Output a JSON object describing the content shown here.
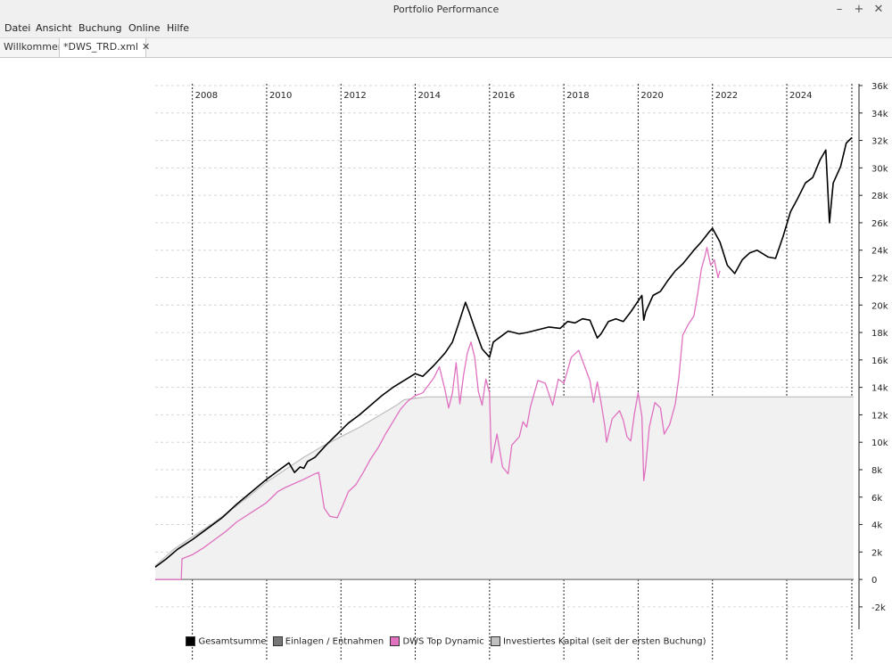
{
  "window": {
    "title": "Portfolio Performance",
    "minimize": "–",
    "maximize": "+",
    "close": "✕"
  },
  "menu": [
    "Datei",
    "Ansicht",
    "Buchung",
    "Online",
    "Hilfe"
  ],
  "tabs": [
    {
      "label": "Willkommen",
      "active": false
    },
    {
      "label": "*DWS_TRD.xml",
      "active": true,
      "close": "✕"
    }
  ],
  "chart_data": {
    "type": "line",
    "x_ticks": [
      "2008",
      "2010",
      "2012",
      "2014",
      "2016",
      "2018",
      "2020",
      "2022",
      "2024"
    ],
    "y_ticks": [
      "36k",
      "34k",
      "32k",
      "30k",
      "28k",
      "26k",
      "24k",
      "22k",
      "20k",
      "18k",
      "16k",
      "14k",
      "12k",
      "10k",
      "8k",
      "6k",
      "4k",
      "2k",
      "0",
      "-2k"
    ],
    "xlim": [
      2007.0,
      2025.8
    ],
    "ylim": [
      -3500,
      36000
    ],
    "grid": true,
    "legend_position": "bottom-center",
    "series": [
      {
        "name": "Investiertes Kapital (seit der ersten Buchung)",
        "color": "#c0c0c0",
        "fill": "#f1f1f1",
        "points": [
          [
            2007.0,
            1000
          ],
          [
            2007.5,
            2200
          ],
          [
            2008.0,
            3100
          ],
          [
            2008.5,
            4000
          ],
          [
            2009.0,
            5000
          ],
          [
            2009.5,
            6000
          ],
          [
            2010.0,
            7100
          ],
          [
            2010.5,
            8000
          ],
          [
            2011.0,
            8900
          ],
          [
            2011.5,
            9700
          ],
          [
            2012.0,
            10400
          ],
          [
            2012.5,
            11100
          ],
          [
            2013.0,
            11900
          ],
          [
            2013.5,
            12700
          ],
          [
            2013.7,
            13100
          ],
          [
            2014.0,
            13200
          ],
          [
            2014.3,
            13300
          ],
          [
            2025.8,
            13300
          ]
        ]
      },
      {
        "name": "Einlagen / Entnahmen",
        "color": "#777777",
        "points": [
          [
            2007.0,
            0
          ],
          [
            2025.8,
            0
          ]
        ]
      },
      {
        "name": "DWS Top Dynamic",
        "color": "#e070c0",
        "points": [
          [
            2007.0,
            0
          ],
          [
            2007.7,
            0
          ],
          [
            2007.72,
            1500
          ],
          [
            2008.0,
            1800
          ],
          [
            2008.3,
            2300
          ],
          [
            2008.6,
            2900
          ],
          [
            2008.9,
            3500
          ],
          [
            2009.2,
            4200
          ],
          [
            2009.6,
            4900
          ],
          [
            2010.0,
            5600
          ],
          [
            2010.3,
            6400
          ],
          [
            2010.5,
            6700
          ],
          [
            2011.0,
            7300
          ],
          [
            2011.3,
            7700
          ],
          [
            2011.4,
            7800
          ],
          [
            2011.55,
            5200
          ],
          [
            2011.7,
            4600
          ],
          [
            2011.9,
            4500
          ],
          [
            2012.05,
            5400
          ],
          [
            2012.2,
            6400
          ],
          [
            2012.4,
            6900
          ],
          [
            2012.6,
            7800
          ],
          [
            2012.8,
            8800
          ],
          [
            2013.0,
            9600
          ],
          [
            2013.2,
            10600
          ],
          [
            2013.4,
            11500
          ],
          [
            2013.6,
            12400
          ],
          [
            2013.8,
            13000
          ],
          [
            2014.0,
            13400
          ],
          [
            2014.2,
            13600
          ],
          [
            2014.5,
            14700
          ],
          [
            2014.65,
            15500
          ],
          [
            2014.8,
            13800
          ],
          [
            2014.9,
            12500
          ],
          [
            2015.0,
            13600
          ],
          [
            2015.1,
            15800
          ],
          [
            2015.2,
            12800
          ],
          [
            2015.3,
            14900
          ],
          [
            2015.4,
            16500
          ],
          [
            2015.5,
            17300
          ],
          [
            2015.6,
            16200
          ],
          [
            2015.7,
            13700
          ],
          [
            2015.8,
            12700
          ],
          [
            2015.9,
            14600
          ],
          [
            2016.0,
            13600
          ],
          [
            2016.05,
            8500
          ],
          [
            2016.2,
            10600
          ],
          [
            2016.35,
            8200
          ],
          [
            2016.5,
            7700
          ],
          [
            2016.6,
            9800
          ],
          [
            2016.8,
            10400
          ],
          [
            2016.9,
            11500
          ],
          [
            2017.0,
            11100
          ],
          [
            2017.1,
            12600
          ],
          [
            2017.3,
            14500
          ],
          [
            2017.5,
            14300
          ],
          [
            2017.7,
            12700
          ],
          [
            2017.85,
            14600
          ],
          [
            2018.0,
            14300
          ],
          [
            2018.2,
            16200
          ],
          [
            2018.4,
            16700
          ],
          [
            2018.55,
            15600
          ],
          [
            2018.7,
            14500
          ],
          [
            2018.8,
            12900
          ],
          [
            2018.9,
            14400
          ],
          [
            2019.0,
            12900
          ],
          [
            2019.1,
            11200
          ],
          [
            2019.15,
            10000
          ],
          [
            2019.3,
            11700
          ],
          [
            2019.5,
            12300
          ],
          [
            2019.6,
            11600
          ],
          [
            2019.7,
            10400
          ],
          [
            2019.8,
            10100
          ],
          [
            2019.9,
            12100
          ],
          [
            2020.0,
            13600
          ],
          [
            2020.1,
            11900
          ],
          [
            2020.15,
            7200
          ],
          [
            2020.2,
            8200
          ],
          [
            2020.3,
            11100
          ],
          [
            2020.45,
            12900
          ],
          [
            2020.6,
            12500
          ],
          [
            2020.7,
            10600
          ],
          [
            2020.85,
            11300
          ],
          [
            2021.0,
            12800
          ],
          [
            2021.1,
            14800
          ],
          [
            2021.2,
            17800
          ],
          [
            2021.35,
            18600
          ],
          [
            2021.5,
            19200
          ],
          [
            2021.6,
            20800
          ],
          [
            2021.7,
            22600
          ],
          [
            2021.8,
            23600
          ],
          [
            2021.85,
            24200
          ],
          [
            2021.95,
            22900
          ],
          [
            2022.05,
            23300
          ],
          [
            2022.15,
            22000
          ],
          [
            2022.2,
            22500
          ]
        ]
      },
      {
        "name": "Gesamtsumme",
        "color": "#000000",
        "points": [
          [
            2007.0,
            900
          ],
          [
            2007.3,
            1500
          ],
          [
            2007.6,
            2200
          ],
          [
            2008.0,
            2900
          ],
          [
            2008.4,
            3700
          ],
          [
            2008.8,
            4500
          ],
          [
            2009.2,
            5500
          ],
          [
            2009.6,
            6400
          ],
          [
            2010.0,
            7300
          ],
          [
            2010.3,
            7900
          ],
          [
            2010.6,
            8500
          ],
          [
            2010.75,
            7800
          ],
          [
            2010.9,
            8200
          ],
          [
            2011.0,
            8100
          ],
          [
            2011.1,
            8600
          ],
          [
            2011.3,
            8900
          ],
          [
            2011.6,
            9800
          ],
          [
            2011.9,
            10600
          ],
          [
            2012.2,
            11400
          ],
          [
            2012.5,
            12000
          ],
          [
            2012.8,
            12700
          ],
          [
            2013.1,
            13400
          ],
          [
            2013.4,
            14000
          ],
          [
            2013.7,
            14500
          ],
          [
            2014.0,
            15000
          ],
          [
            2014.2,
            14800
          ],
          [
            2014.5,
            15600
          ],
          [
            2014.8,
            16500
          ],
          [
            2015.0,
            17300
          ],
          [
            2015.15,
            18500
          ],
          [
            2015.35,
            20200
          ],
          [
            2015.45,
            19500
          ],
          [
            2015.6,
            18300
          ],
          [
            2015.8,
            16800
          ],
          [
            2016.0,
            16200
          ],
          [
            2016.1,
            17300
          ],
          [
            2016.3,
            17700
          ],
          [
            2016.5,
            18100
          ],
          [
            2016.8,
            17900
          ],
          [
            2017.0,
            18000
          ],
          [
            2017.3,
            18200
          ],
          [
            2017.6,
            18400
          ],
          [
            2017.9,
            18300
          ],
          [
            2018.1,
            18800
          ],
          [
            2018.3,
            18700
          ],
          [
            2018.5,
            19000
          ],
          [
            2018.7,
            18900
          ],
          [
            2018.9,
            17600
          ],
          [
            2019.0,
            17900
          ],
          [
            2019.2,
            18800
          ],
          [
            2019.4,
            19000
          ],
          [
            2019.6,
            18800
          ],
          [
            2019.8,
            19500
          ],
          [
            2020.0,
            20300
          ],
          [
            2020.1,
            20700
          ],
          [
            2020.15,
            18900
          ],
          [
            2020.2,
            19500
          ],
          [
            2020.4,
            20700
          ],
          [
            2020.6,
            21000
          ],
          [
            2020.8,
            21800
          ],
          [
            2021.0,
            22500
          ],
          [
            2021.2,
            23000
          ],
          [
            2021.5,
            24000
          ],
          [
            2021.7,
            24600
          ],
          [
            2021.9,
            25300
          ],
          [
            2022.0,
            25600
          ],
          [
            2022.2,
            24600
          ],
          [
            2022.4,
            22900
          ],
          [
            2022.6,
            22300
          ],
          [
            2022.8,
            23300
          ],
          [
            2023.0,
            23800
          ],
          [
            2023.2,
            24000
          ],
          [
            2023.5,
            23500
          ],
          [
            2023.7,
            23400
          ],
          [
            2023.9,
            25000
          ],
          [
            2024.1,
            26800
          ],
          [
            2024.3,
            27800
          ],
          [
            2024.5,
            28900
          ],
          [
            2024.7,
            29300
          ],
          [
            2024.9,
            30600
          ],
          [
            2025.05,
            31300
          ],
          [
            2025.15,
            26000
          ],
          [
            2025.25,
            28900
          ],
          [
            2025.45,
            30100
          ],
          [
            2025.6,
            31800
          ],
          [
            2025.75,
            32200
          ]
        ]
      }
    ]
  },
  "legend": [
    {
      "label": "Gesamtsumme",
      "color": "#000000"
    },
    {
      "label": "Einlagen / Entnahmen",
      "color": "#777777"
    },
    {
      "label": "DWS Top Dynamic",
      "color": "#e070c0"
    },
    {
      "label": "Investiertes Kapital (seit der ersten Buchung)",
      "color": "#c0c0c0"
    }
  ]
}
